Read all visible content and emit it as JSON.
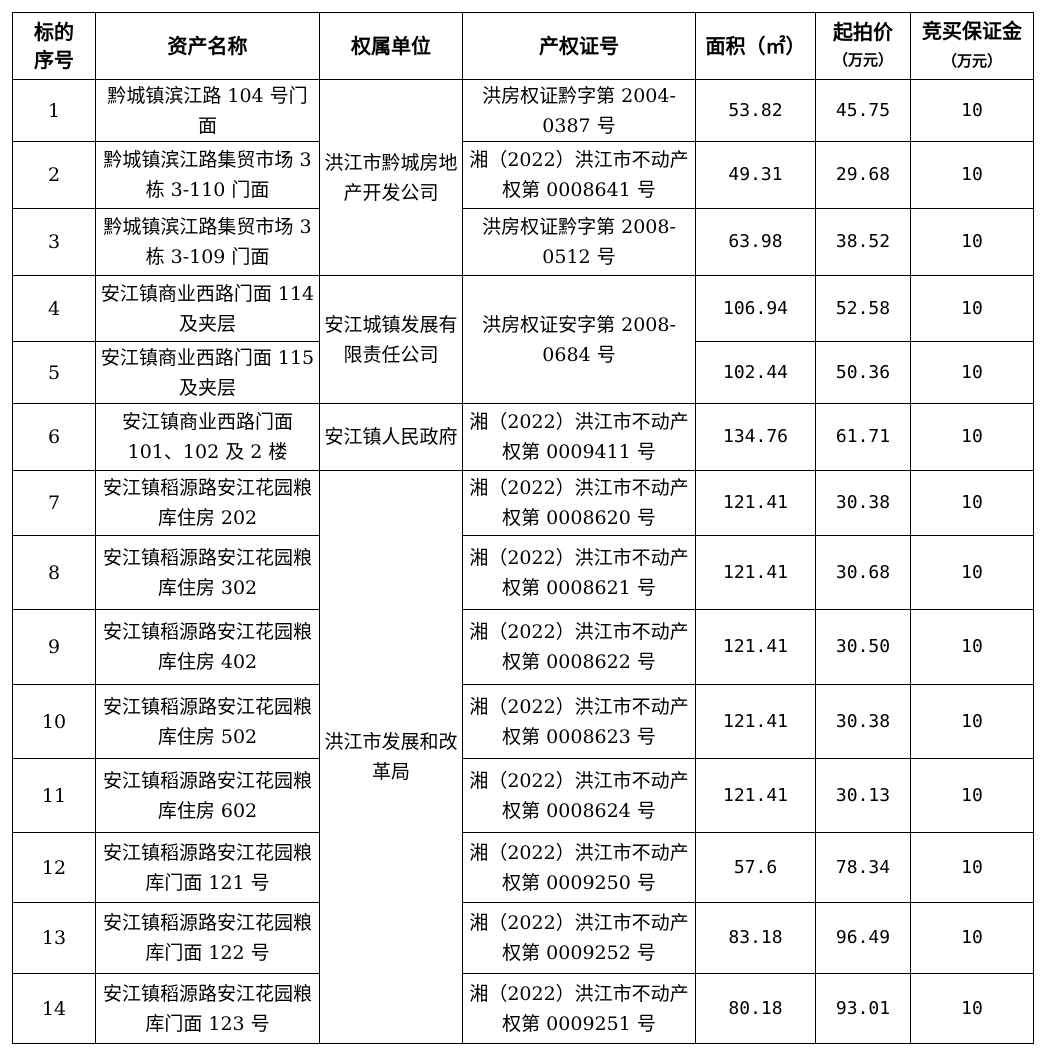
{
  "headers": {
    "no": "标的序号",
    "name": "资产名称",
    "owner": "权属单位",
    "cert": "产权证号",
    "area": "面积（㎡）",
    "price": "起拍价",
    "price_unit": "（万元）",
    "deposit": "竞买保证金",
    "deposit_unit": "（万元）"
  },
  "owner_groups": [
    {
      "name": "洪江市黔城房地产开发公司",
      "span": 3
    },
    {
      "name": "安江城镇发展有限责任公司",
      "span": 2
    },
    {
      "name": "安江镇人民政府",
      "span": 1
    },
    {
      "name": "洪江市发展和改革局",
      "span": 8
    }
  ],
  "rows": [
    {
      "no": "1",
      "name": "黔城镇滨江路 104 号门面",
      "cert": "洪房权证黔字第 2004-0387 号",
      "cert_span": 1,
      "area": "53.82",
      "price": "45.75",
      "deposit": "10"
    },
    {
      "no": "2",
      "name": "黔城镇滨江路集贸市场 3 栋 3-110 门面",
      "cert": "湘（2022）洪江市不动产权第 0008641 号",
      "cert_span": 1,
      "area": "49.31",
      "price": "29.68",
      "deposit": "10"
    },
    {
      "no": "3",
      "name": "黔城镇滨江路集贸市场 3 栋 3-109 门面",
      "cert": "洪房权证黔字第 2008-0512 号",
      "cert_span": 1,
      "area": "63.98",
      "price": "38.52",
      "deposit": "10"
    },
    {
      "no": "4",
      "name": "安江镇商业西路门面 114 及夹层",
      "cert": "洪房权证安字第 2008-0684 号",
      "cert_span": 2,
      "area": "106.94",
      "price": "52.58",
      "deposit": "10"
    },
    {
      "no": "5",
      "name": "安江镇商业西路门面 115 及夹层",
      "cert": null,
      "cert_span": 0,
      "area": "102.44",
      "price": "50.36",
      "deposit": "10"
    },
    {
      "no": "6",
      "name": "安江镇商业西路门面 101、102 及 2 楼",
      "cert": "湘（2022）洪江市不动产权第 0009411 号",
      "cert_span": 1,
      "area": "134.76",
      "price": "61.71",
      "deposit": "10"
    },
    {
      "no": "7",
      "name": "安江镇稻源路安江花园粮库住房 202",
      "cert": "湘（2022）洪江市不动产权第 0008620 号",
      "cert_span": 1,
      "area": "121.41",
      "price": "30.38",
      "deposit": "10"
    },
    {
      "no": "8",
      "name": "安江镇稻源路安江花园粮库住房 302",
      "cert": "湘（2022）洪江市不动产权第 0008621 号",
      "cert_span": 1,
      "area": "121.41",
      "price": "30.68",
      "deposit": "10"
    },
    {
      "no": "9",
      "name": "安江镇稻源路安江花园粮库住房 402",
      "cert": "湘（2022）洪江市不动产权第 0008622 号",
      "cert_span": 1,
      "area": "121.41",
      "price": "30.50",
      "deposit": "10"
    },
    {
      "no": "10",
      "name": "安江镇稻源路安江花园粮库住房 502",
      "cert": "湘（2022）洪江市不动产权第 0008623 号",
      "cert_span": 1,
      "area": "121.41",
      "price": "30.38",
      "deposit": "10"
    },
    {
      "no": "11",
      "name": "安江镇稻源路安江花园粮库住房 602",
      "cert": "湘（2022）洪江市不动产权第 0008624 号",
      "cert_span": 1,
      "area": "121.41",
      "price": "30.13",
      "deposit": "10"
    },
    {
      "no": "12",
      "name": "安江镇稻源路安江花园粮库门面 121 号",
      "cert": "湘（2022）洪江市不动产权第 0009250 号",
      "cert_span": 1,
      "area": "57.6",
      "price": "78.34",
      "deposit": "10"
    },
    {
      "no": "13",
      "name": "安江镇稻源路安江花园粮库门面 122 号",
      "cert": "湘（2022）洪江市不动产权第 0009252 号",
      "cert_span": 1,
      "area": "83.18",
      "price": "96.49",
      "deposit": "10"
    },
    {
      "no": "14",
      "name": "安江镇稻源路安江花园粮库门面 123 号",
      "cert": "湘（2022）洪江市不动产权第 0009251 号",
      "cert_span": 1,
      "area": "80.18",
      "price": "93.01",
      "deposit": "10"
    }
  ]
}
